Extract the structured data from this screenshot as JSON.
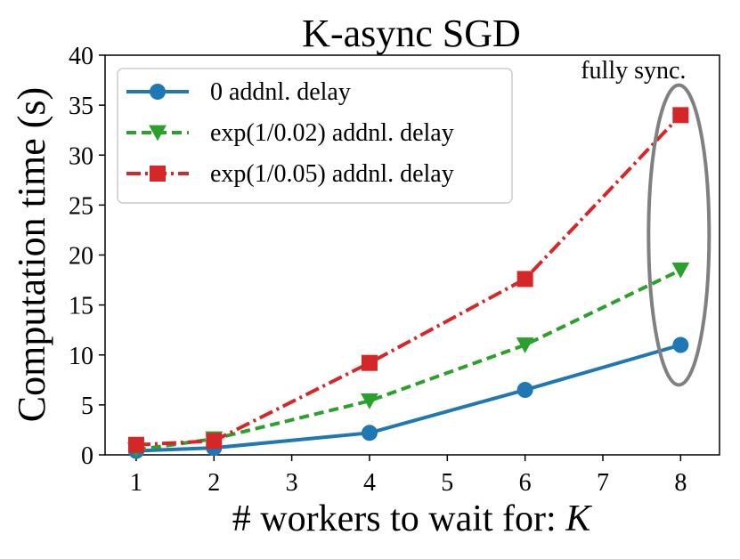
{
  "chart_data": {
    "type": "line",
    "title": "K-async SGD",
    "xlabel": "# workers to wait for: ",
    "xlabel_italic": "K",
    "ylabel": "Computation time (s)",
    "xlim": [
      0.6,
      8.5
    ],
    "ylim": [
      0,
      40
    ],
    "xticks": [
      1,
      2,
      3,
      4,
      5,
      6,
      7,
      8
    ],
    "yticks": [
      0,
      5,
      10,
      15,
      20,
      25,
      30,
      35,
      40
    ],
    "grid": false,
    "legend_position": "top-left",
    "series": [
      {
        "name": "0 addnl. delay",
        "color": "#1f77b4",
        "marker": "circle",
        "linestyle": "solid",
        "x": [
          1,
          2,
          4,
          6,
          8
        ],
        "y": [
          0.4,
          0.7,
          2.2,
          6.5,
          11.0
        ]
      },
      {
        "name": "exp(1/0.02) addnl. delay",
        "color": "#2ca02c",
        "marker": "triangle-down",
        "linestyle": "dashed",
        "x": [
          1,
          2,
          4,
          6,
          8
        ],
        "y": [
          0.5,
          1.6,
          5.4,
          11.0,
          18.5
        ]
      },
      {
        "name": "exp(1/0.05) addnl. delay",
        "color": "#d62728",
        "marker": "square",
        "linestyle": "dashdot",
        "x": [
          1,
          2,
          4,
          6,
          8
        ],
        "y": [
          1.0,
          1.4,
          9.2,
          17.6,
          34.0
        ]
      }
    ],
    "annotations": [
      {
        "text": "fully sync.",
        "shape": "ellipse",
        "color": "#808080",
        "x": 8,
        "y_range": [
          7,
          37
        ]
      }
    ]
  }
}
